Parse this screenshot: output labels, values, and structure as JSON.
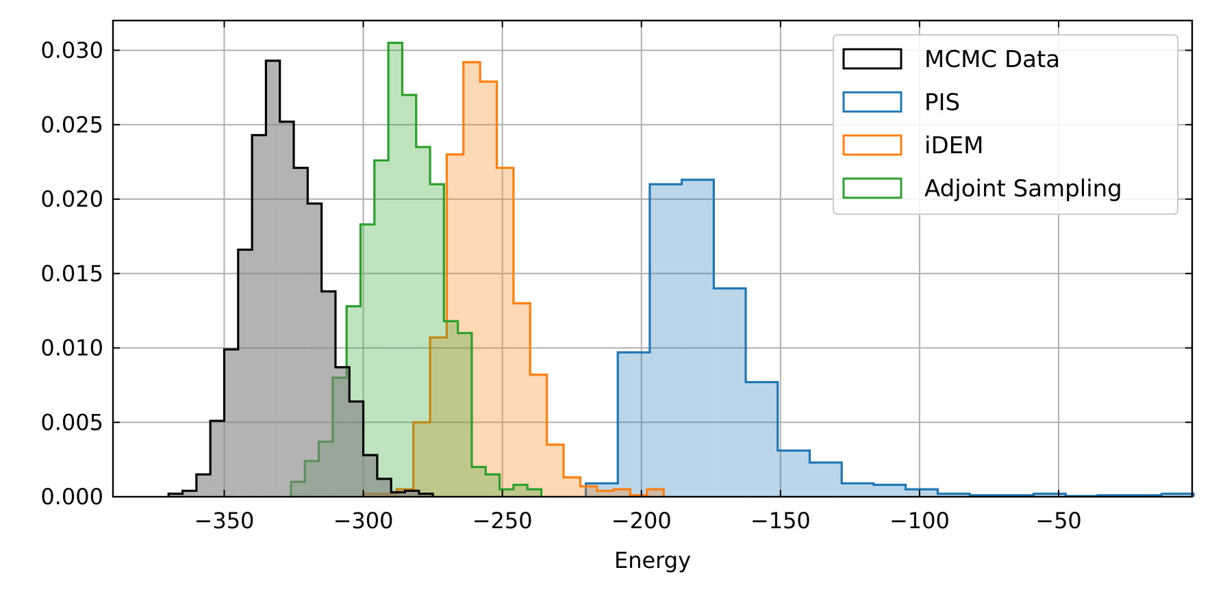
{
  "chart_data": {
    "type": "histogram-step",
    "title": "",
    "xlabel": "Energy",
    "ylabel": "",
    "xlim": [
      -390,
      -2
    ],
    "ylim": [
      0,
      0.032
    ],
    "xticks": [
      -350,
      -300,
      -250,
      -200,
      -150,
      -100,
      -50
    ],
    "xtick_labels": [
      "−350",
      "−300",
      "−250",
      "−200",
      "−150",
      "−100",
      "−50"
    ],
    "yticks": [
      0.0,
      0.005,
      0.01,
      0.015,
      0.02,
      0.025,
      0.03
    ],
    "ytick_labels": [
      "0.000",
      "0.005",
      "0.010",
      "0.015",
      "0.020",
      "0.025",
      "0.030"
    ],
    "grid": true,
    "legend_position": "top-right",
    "series": [
      {
        "name": "PIS",
        "color": "#1f77b4",
        "edges": [
          -220,
          -208.5,
          -197,
          -185.5,
          -174,
          -162.5,
          -151,
          -139.5,
          -128,
          -116.5,
          -105,
          -93.5,
          -82,
          -70.5,
          -59,
          -47.5,
          -36,
          -24.5,
          -13,
          -1.5
        ],
        "values": [
          0.0009,
          0.0097,
          0.021,
          0.0213,
          0.014,
          0.0077,
          0.0031,
          0.0023,
          0.0009,
          0.0008,
          0.0005,
          0.0002,
          0.0001,
          0.0001,
          0.0002,
          5e-05,
          0.0001,
          0.0001,
          0.0002
        ]
      },
      {
        "name": "iDEM",
        "color": "#ff7f0e",
        "edges": [
          -300,
          -294,
          -288,
          -282,
          -276,
          -270,
          -264,
          -258,
          -252,
          -246,
          -240,
          -234,
          -228,
          -222,
          -216,
          -210,
          -204,
          -198,
          -192
        ],
        "values": [
          0.0002,
          0.0002,
          0.0005,
          0.005,
          0.0107,
          0.023,
          0.0292,
          0.0279,
          0.0221,
          0.013,
          0.0082,
          0.0035,
          0.0013,
          0.0007,
          0.0004,
          0.0005,
          0.0001,
          0.0005
        ]
      },
      {
        "name": "Adjoint Sampling",
        "color": "#2ca02c",
        "edges": [
          -326,
          -321,
          -316,
          -311,
          -306,
          -301,
          -296,
          -291,
          -286,
          -281,
          -276,
          -271,
          -266,
          -261,
          -256,
          -251,
          -246,
          -241,
          -236
        ],
        "values": [
          0.001,
          0.0024,
          0.0037,
          0.008,
          0.0128,
          0.0183,
          0.0226,
          0.0305,
          0.027,
          0.0235,
          0.021,
          0.0118,
          0.011,
          0.002,
          0.0015,
          0.0005,
          0.0008,
          0.0005
        ]
      },
      {
        "name": "MCMC Data",
        "color": "#000000",
        "fill": "#808080",
        "edges": [
          -370,
          -365,
          -360,
          -355,
          -350,
          -345,
          -340,
          -335,
          -330,
          -325,
          -320,
          -315,
          -310,
          -305,
          -300,
          -295,
          -290,
          -285,
          -280,
          -275
        ],
        "values": [
          0.0002,
          0.0004,
          0.0015,
          0.0051,
          0.0099,
          0.0166,
          0.0243,
          0.0293,
          0.0252,
          0.0221,
          0.0197,
          0.0138,
          0.0087,
          0.0064,
          0.0028,
          0.0012,
          0.0003,
          0.0004,
          0.0002
        ]
      }
    ],
    "legend_order": [
      "MCMC Data",
      "PIS",
      "iDEM",
      "Adjoint Sampling"
    ]
  }
}
